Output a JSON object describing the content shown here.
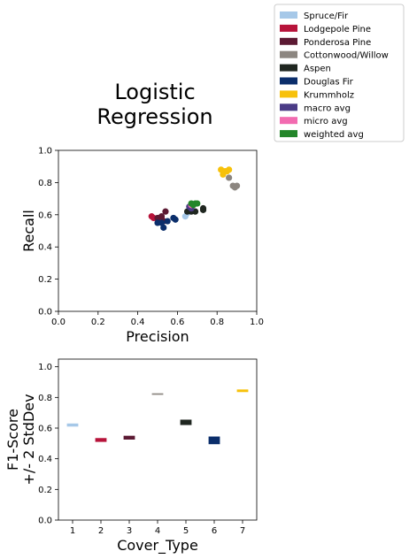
{
  "title_line1": "Logistic",
  "title_line2": "Regression",
  "legend": [
    {
      "label": "Spruce/Fir",
      "color": "#a6c8e8"
    },
    {
      "label": "Lodgepole Pine",
      "color": "#b7133a"
    },
    {
      "label": "Ponderosa Pine",
      "color": "#5c1a33"
    },
    {
      "label": "Cottonwood/Willow",
      "color": "#8c8680"
    },
    {
      "label": "Aspen",
      "color": "#1f2620"
    },
    {
      "label": "Douglas Fir",
      "color": "#0b2e6b"
    },
    {
      "label": "Krummholz",
      "color": "#f7c10a"
    },
    {
      "label": "macro avg",
      "color": "#4a3b86"
    },
    {
      "label": "micro avg",
      "color": "#f26bb0"
    },
    {
      "label": "weighted avg",
      "color": "#23862a"
    }
  ],
  "chart_data": [
    {
      "type": "scatter",
      "xlabel": "Precision",
      "ylabel": "Recall",
      "xlim": [
        0,
        1
      ],
      "ylim": [
        0,
        1
      ],
      "xticks": [
        "0.0",
        "0.2",
        "0.4",
        "0.6",
        "0.8",
        "1.0"
      ],
      "yticks": [
        "0.0",
        "0.2",
        "0.4",
        "0.6",
        "0.8",
        "1.0"
      ],
      "series": [
        {
          "color": "#a6c8e8",
          "points": [
            [
              0.64,
              0.59
            ],
            [
              0.65,
              0.61
            ],
            [
              0.66,
              0.63
            ]
          ]
        },
        {
          "color": "#b7133a",
          "points": [
            [
              0.47,
              0.59
            ],
            [
              0.48,
              0.58
            ],
            [
              0.5,
              0.57
            ],
            [
              0.52,
              0.58
            ],
            [
              0.51,
              0.56
            ]
          ]
        },
        {
          "color": "#5c1a33",
          "points": [
            [
              0.52,
              0.59
            ],
            [
              0.54,
              0.62
            ],
            [
              0.53,
              0.56
            ],
            [
              0.5,
              0.58
            ]
          ]
        },
        {
          "color": "#8c8680",
          "points": [
            [
              0.86,
              0.83
            ],
            [
              0.88,
              0.78
            ],
            [
              0.89,
              0.77
            ],
            [
              0.9,
              0.78
            ]
          ]
        },
        {
          "color": "#1f2620",
          "points": [
            [
              0.67,
              0.62
            ],
            [
              0.69,
              0.62
            ],
            [
              0.73,
              0.63
            ],
            [
              0.73,
              0.64
            ],
            [
              0.65,
              0.62
            ]
          ]
        },
        {
          "color": "#0b2e6b",
          "points": [
            [
              0.5,
              0.55
            ],
            [
              0.53,
              0.52
            ],
            [
              0.55,
              0.56
            ],
            [
              0.58,
              0.58
            ],
            [
              0.59,
              0.57
            ],
            [
              0.52,
              0.55
            ]
          ]
        },
        {
          "color": "#f7c10a",
          "points": [
            [
              0.82,
              0.88
            ],
            [
              0.83,
              0.85
            ],
            [
              0.85,
              0.87
            ],
            [
              0.86,
              0.88
            ],
            [
              0.84,
              0.87
            ]
          ]
        },
        {
          "color": "#4a3b86",
          "points": [
            [
              0.66,
              0.65
            ],
            [
              0.67,
              0.64
            ]
          ]
        },
        {
          "color": "#f26bb0",
          "points": [
            [
              0.67,
              0.66
            ]
          ]
        },
        {
          "color": "#23862a",
          "points": [
            [
              0.67,
              0.67
            ],
            [
              0.69,
              0.67
            ],
            [
              0.68,
              0.66
            ],
            [
              0.7,
              0.67
            ]
          ]
        }
      ]
    },
    {
      "type": "bar",
      "xlabel": "Cover_Type",
      "ylabel_line1": "F1-Score",
      "ylabel_line2": "+/- 2 StdDev",
      "xlim": [
        0.5,
        7.5
      ],
      "ylim": [
        0,
        1.05
      ],
      "categories": [
        "1",
        "2",
        "3",
        "4",
        "5",
        "6",
        "7"
      ],
      "yticks": [
        "0.0",
        "0.2",
        "0.4",
        "0.6",
        "0.8",
        "1.0"
      ],
      "ranges": [
        {
          "low": 0.61,
          "high": 0.63,
          "color": "#a6c8e8"
        },
        {
          "low": 0.51,
          "high": 0.535,
          "color": "#b7133a"
        },
        {
          "low": 0.525,
          "high": 0.55,
          "color": "#5c1a33"
        },
        {
          "low": 0.817,
          "high": 0.827,
          "color": "#8c8680"
        },
        {
          "low": 0.62,
          "high": 0.655,
          "color": "#1f2620"
        },
        {
          "low": 0.495,
          "high": 0.545,
          "color": "#0b2e6b"
        },
        {
          "low": 0.835,
          "high": 0.852,
          "color": "#f7c10a"
        }
      ]
    }
  ]
}
